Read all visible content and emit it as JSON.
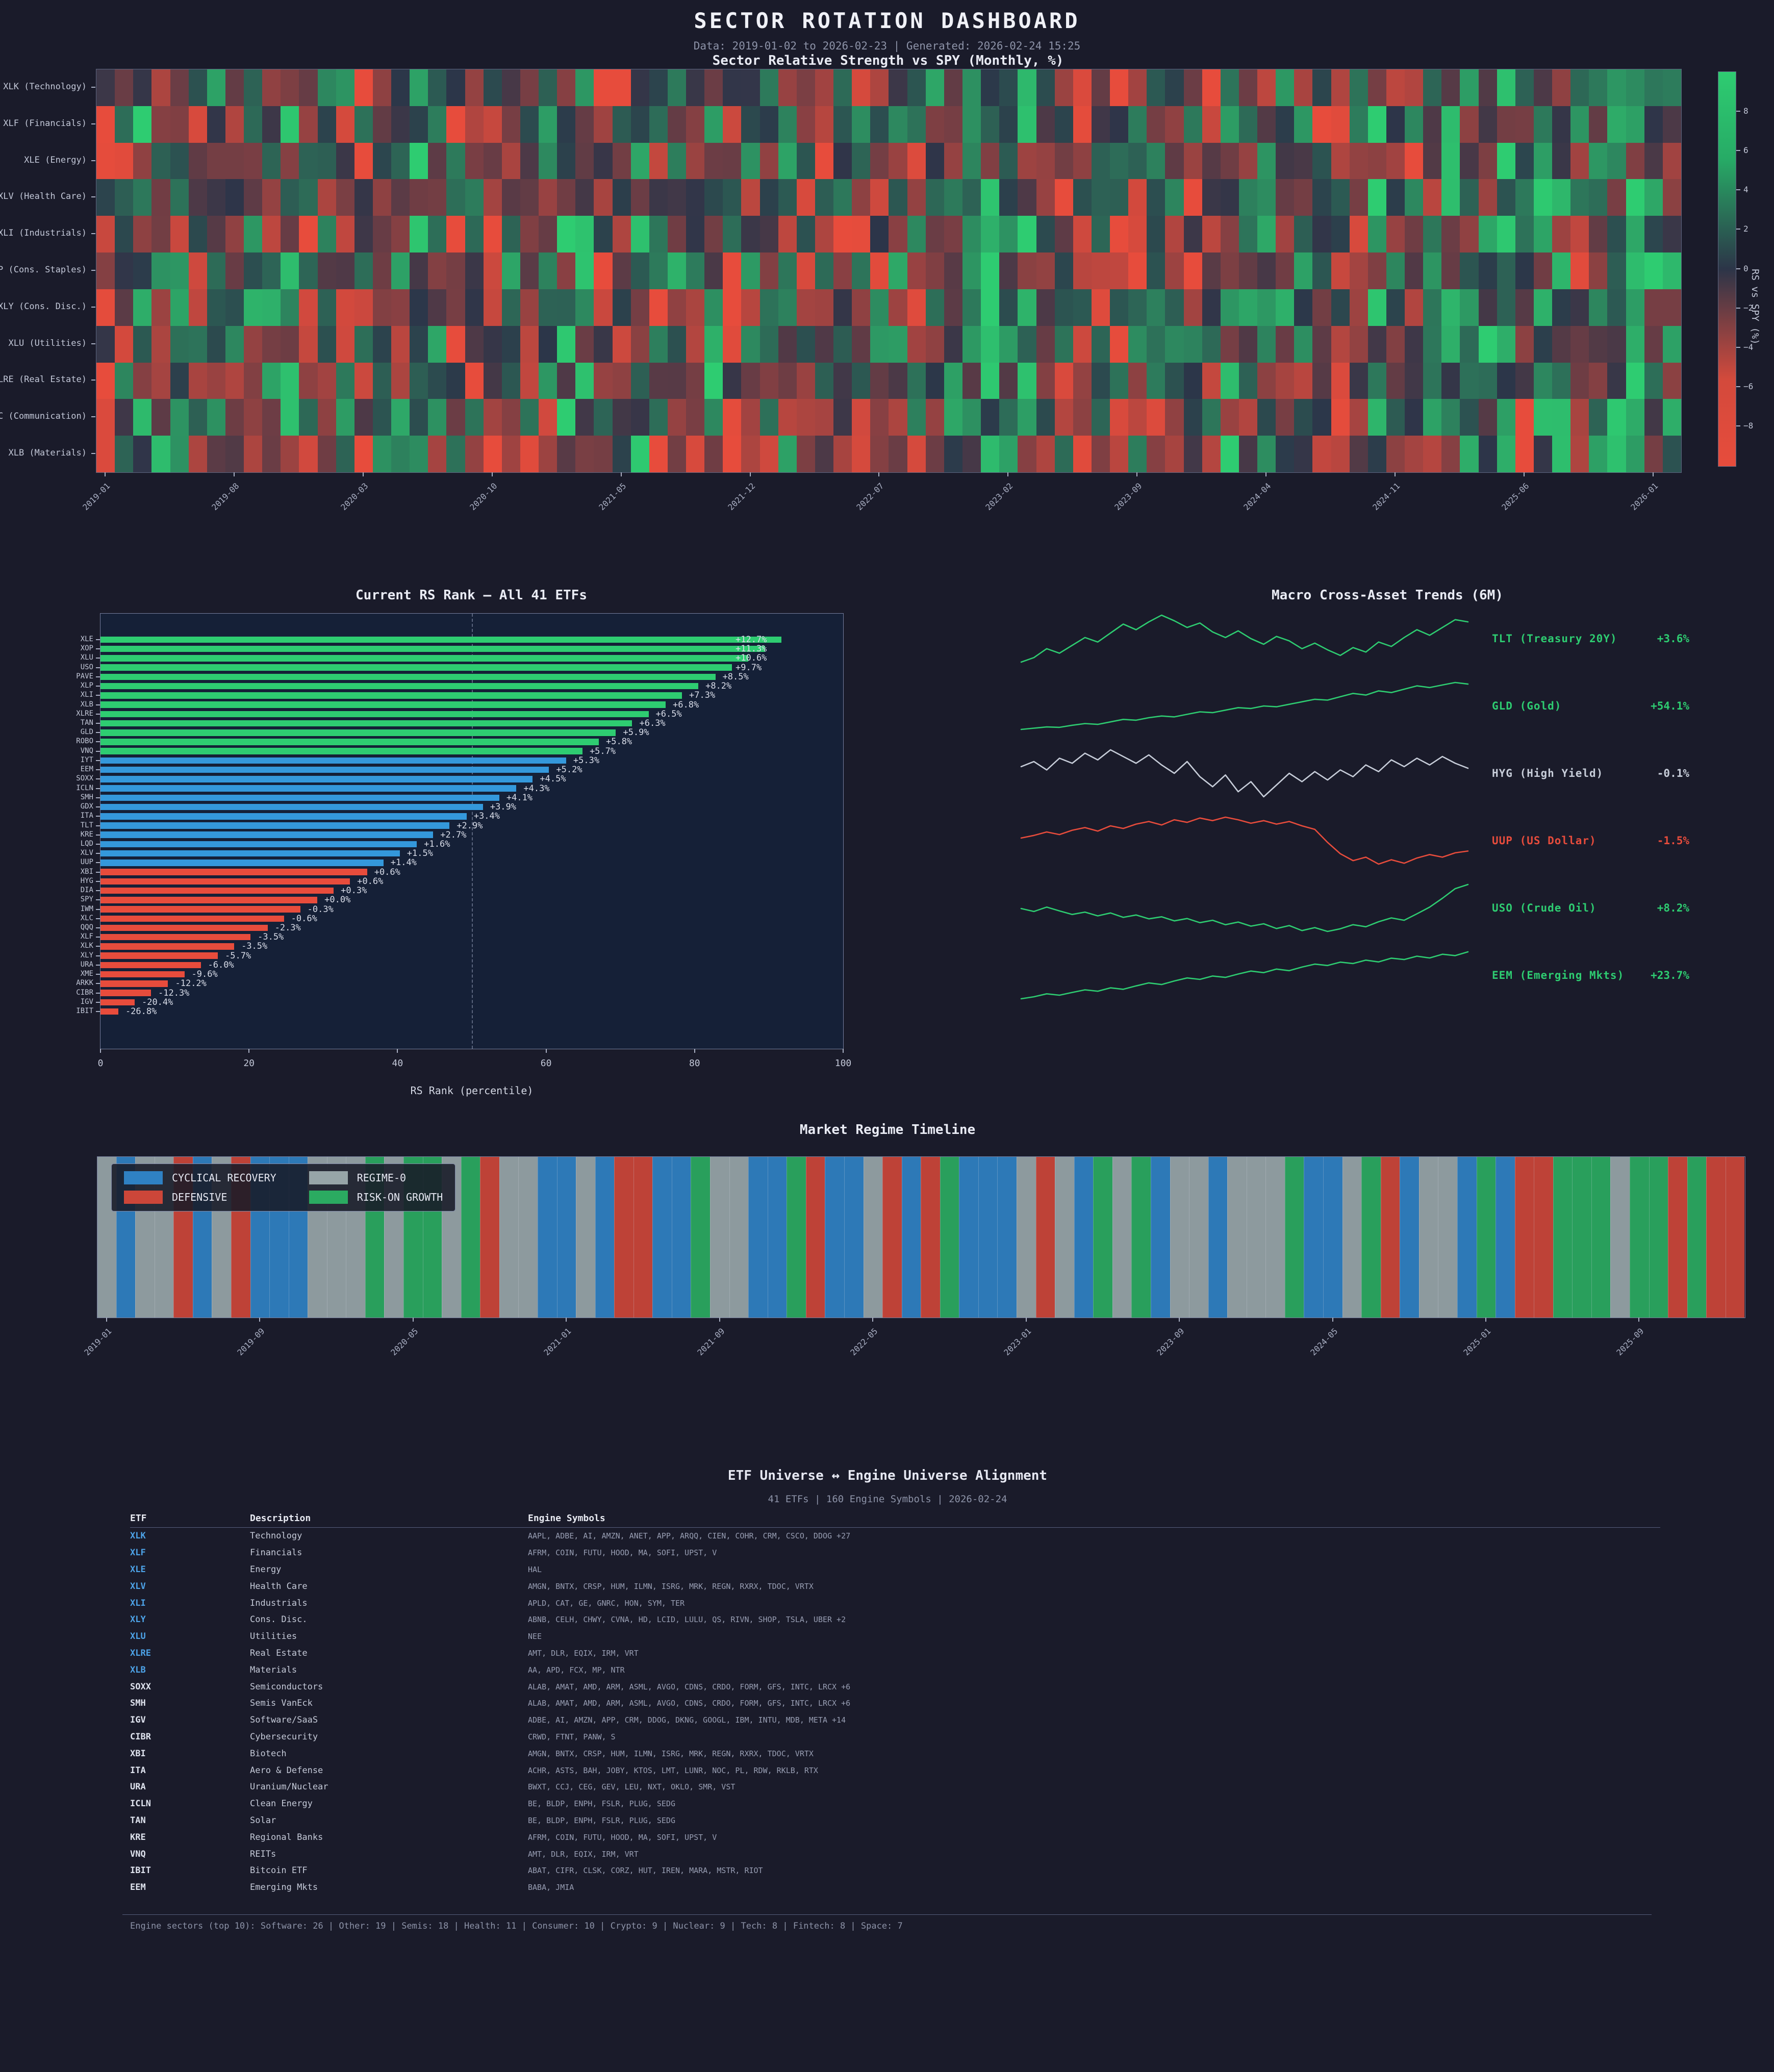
{
  "header": {
    "title": "SECTOR ROTATION DASHBOARD",
    "subtitle": "Data: 2019-01-02 to 2026-02-23 | Generated: 2026-02-24 15:25"
  },
  "colors": {
    "background": "#1a1b2a",
    "plot_background": "#152037",
    "green": "#2ecc71",
    "blue": "#3498db",
    "red": "#e74c3c",
    "neutral_cell": "#2c3548",
    "muted_text": "#8d93a8",
    "regime_blue": "#2f81c3",
    "regime_red": "#cc4639",
    "regime_gray": "#97a5a8",
    "regime_green": "#2bab61",
    "macro_gray_line": "#c7cdd9",
    "etf_blue": "#4da3e8"
  },
  "chart_data": [
    {
      "id": "sector_heatmap",
      "type": "heatmap",
      "title": "Sector Relative Strength vs SPY (Monthly, %)",
      "rows": [
        "XLK (Technology)",
        "XLF (Financials)",
        "XLE (Energy)",
        "XLV (Health Care)",
        "XLI (Industrials)",
        "XLP (Cons. Staples)",
        "XLY (Cons. Disc.)",
        "XLU (Utilities)",
        "XLRE (Real Estate)",
        "XLC (Communication)",
        "XLB (Materials)"
      ],
      "n_cols": 86,
      "x_tick_labels": [
        "2019-01",
        "2019-08",
        "2020-03",
        "2020-10",
        "2021-05",
        "2021-12",
        "2022-07",
        "2023-02",
        "2023-09",
        "2024-04",
        "2024-11",
        "2025-06",
        "2026-01"
      ],
      "x_tick_months": [
        0,
        7,
        14,
        21,
        28,
        35,
        42,
        49,
        56,
        63,
        70,
        77,
        84
      ],
      "vmin": -9.2,
      "vmax": 9.2,
      "colorbar_ticks": [
        "8",
        "6",
        "4",
        "2",
        "0",
        "−2",
        "−4",
        "−6",
        "−8"
      ],
      "colorbar_tick_values": [
        8,
        6,
        4,
        2,
        0,
        -2,
        -4,
        -6,
        -8
      ],
      "colorbar_label": "RS vs SPY (%)",
      "values_note": "individual monthly cell values are not legible in source; regenerated from seed",
      "seed": 1337
    },
    {
      "id": "rs_rank",
      "type": "bar",
      "title": "Current RS Rank — All 41 ETFs",
      "xlabel": "RS Rank (percentile)",
      "x_ticks": [
        0,
        20,
        40,
        60,
        80,
        100
      ],
      "xlim": [
        0,
        100
      ],
      "guide_line_x": 50,
      "tier_colors": {
        "top": "#2ecc71",
        "mid": "#3498db",
        "low": "#e74c3c"
      },
      "bars": [
        {
          "etf": "XLE",
          "pct": 91.7,
          "label": "+12.7%",
          "tier": "top"
        },
        {
          "etf": "XOP",
          "pct": 89.5,
          "label": "+11.3%",
          "tier": "top"
        },
        {
          "etf": "XLU",
          "pct": 87.2,
          "label": "+10.6%",
          "tier": "top"
        },
        {
          "etf": "USO",
          "pct": 85.0,
          "label": "+9.7%",
          "tier": "top"
        },
        {
          "etf": "PAVE",
          "pct": 82.8,
          "label": "+8.5%",
          "tier": "top"
        },
        {
          "etf": "XLP",
          "pct": 80.5,
          "label": "+8.2%",
          "tier": "top"
        },
        {
          "etf": "XLI",
          "pct": 78.3,
          "label": "+7.3%",
          "tier": "top"
        },
        {
          "etf": "XLB",
          "pct": 76.1,
          "label": "+6.8%",
          "tier": "top"
        },
        {
          "etf": "XLRE",
          "pct": 73.8,
          "label": "+6.5%",
          "tier": "top"
        },
        {
          "etf": "TAN",
          "pct": 71.6,
          "label": "+6.3%",
          "tier": "top"
        },
        {
          "etf": "GLD",
          "pct": 69.4,
          "label": "+5.9%",
          "tier": "top"
        },
        {
          "etf": "ROBO",
          "pct": 67.1,
          "label": "+5.8%",
          "tier": "top"
        },
        {
          "etf": "VNQ",
          "pct": 64.9,
          "label": "+5.7%",
          "tier": "top"
        },
        {
          "etf": "IYT",
          "pct": 62.7,
          "label": "+5.3%",
          "tier": "mid"
        },
        {
          "etf": "EEM",
          "pct": 60.4,
          "label": "+5.2%",
          "tier": "mid"
        },
        {
          "etf": "SOXX",
          "pct": 58.2,
          "label": "+4.5%",
          "tier": "mid"
        },
        {
          "etf": "ICLN",
          "pct": 56.0,
          "label": "+4.3%",
          "tier": "mid"
        },
        {
          "etf": "SMH",
          "pct": 53.7,
          "label": "+4.1%",
          "tier": "mid"
        },
        {
          "etf": "GDX",
          "pct": 51.5,
          "label": "+3.9%",
          "tier": "mid"
        },
        {
          "etf": "ITA",
          "pct": 49.3,
          "label": "+3.4%",
          "tier": "mid"
        },
        {
          "etf": "TLT",
          "pct": 47.0,
          "label": "+2.9%",
          "tier": "mid"
        },
        {
          "etf": "KRE",
          "pct": 44.8,
          "label": "+2.7%",
          "tier": "mid"
        },
        {
          "etf": "LQD",
          "pct": 42.6,
          "label": "+1.6%",
          "tier": "mid"
        },
        {
          "etf": "XLV",
          "pct": 40.3,
          "label": "+1.5%",
          "tier": "mid"
        },
        {
          "etf": "UUP",
          "pct": 38.1,
          "label": "+1.4%",
          "tier": "mid"
        },
        {
          "etf": "XBI",
          "pct": 35.9,
          "label": "+0.6%",
          "tier": "low"
        },
        {
          "etf": "HYG",
          "pct": 33.6,
          "label": "+0.6%",
          "tier": "low"
        },
        {
          "etf": "DIA",
          "pct": 31.4,
          "label": "+0.3%",
          "tier": "low"
        },
        {
          "etf": "SPY",
          "pct": 29.2,
          "label": "+0.0%",
          "tier": "low"
        },
        {
          "etf": "IWM",
          "pct": 26.9,
          "label": "-0.3%",
          "tier": "low"
        },
        {
          "etf": "XLC",
          "pct": 24.7,
          "label": "-0.6%",
          "tier": "low"
        },
        {
          "etf": "QQQ",
          "pct": 22.5,
          "label": "-2.3%",
          "tier": "low"
        },
        {
          "etf": "XLF",
          "pct": 20.2,
          "label": "-3.5%",
          "tier": "low"
        },
        {
          "etf": "XLK",
          "pct": 18.0,
          "label": "-3.5%",
          "tier": "low"
        },
        {
          "etf": "XLY",
          "pct": 15.8,
          "label": "-5.7%",
          "tier": "low"
        },
        {
          "etf": "URA",
          "pct": 13.5,
          "label": "-6.0%",
          "tier": "low"
        },
        {
          "etf": "XME",
          "pct": 11.3,
          "label": "-9.6%",
          "tier": "low"
        },
        {
          "etf": "ARKK",
          "pct": 9.1,
          "label": "-12.2%",
          "tier": "low"
        },
        {
          "etf": "CIBR",
          "pct": 6.8,
          "label": "-12.3%",
          "tier": "low"
        },
        {
          "etf": "IGV",
          "pct": 4.6,
          "label": "-20.4%",
          "tier": "low"
        },
        {
          "etf": "IBIT",
          "pct": 2.4,
          "label": "-26.8%",
          "tier": "low"
        }
      ]
    },
    {
      "id": "macro_trends",
      "type": "line",
      "title": "Macro Cross-Asset Trends (6M)",
      "series": [
        {
          "name": "TLT (Treasury 20Y)",
          "change": "+3.6%",
          "color": "#2ecc71",
          "points": [
            0,
            0.4,
            1.2,
            0.8,
            1.5,
            2.2,
            1.8,
            2.6,
            3.4,
            2.9,
            3.6,
            4.2,
            3.7,
            3.1,
            3.5,
            2.7,
            2.2,
            2.8,
            2.1,
            1.6,
            2.3,
            1.9,
            1.2,
            1.7,
            1.1,
            0.6,
            1.3,
            0.9,
            1.8,
            1.4,
            2.2,
            2.9,
            2.4,
            3.1,
            3.8,
            3.6
          ]
        },
        {
          "name": "GLD (Gold)",
          "change": "+54.1%",
          "color": "#2ecc71",
          "points": [
            0,
            1.5,
            3,
            2.5,
            5,
            7,
            6,
            9,
            12,
            11,
            14,
            16,
            15,
            18,
            21,
            20,
            23,
            26,
            25,
            28,
            27,
            30,
            33,
            36,
            35,
            39,
            43,
            41,
            46,
            44,
            48,
            52,
            50,
            53,
            56,
            54.1
          ]
        },
        {
          "name": "HYG (High Yield)",
          "change": "-0.1%",
          "color": "#c7cdd9",
          "points": [
            0,
            0.3,
            -0.2,
            0.5,
            0.2,
            0.8,
            0.4,
            1.0,
            0.6,
            0.2,
            0.7,
            0.1,
            -0.4,
            0.3,
            -0.6,
            -1.2,
            -0.5,
            -1.5,
            -0.9,
            -1.8,
            -1.1,
            -0.4,
            -0.9,
            -0.3,
            -0.8,
            -0.2,
            -0.6,
            0.1,
            -0.3,
            0.4,
            0,
            0.5,
            0.1,
            0.6,
            0.2,
            -0.1
          ]
        },
        {
          "name": "UUP (US Dollar)",
          "change": "-1.5%",
          "color": "#e74c3c",
          "points": [
            0,
            0.3,
            0.7,
            0.4,
            0.9,
            1.2,
            0.8,
            1.4,
            1.1,
            1.6,
            1.9,
            1.5,
            2.1,
            1.8,
            2.3,
            2.0,
            2.4,
            2.1,
            1.7,
            2.0,
            1.6,
            1.9,
            1.4,
            1.0,
            -0.5,
            -1.8,
            -2.6,
            -2.2,
            -3.0,
            -2.5,
            -2.9,
            -2.3,
            -1.9,
            -2.2,
            -1.7,
            -1.5
          ]
        },
        {
          "name": "USO (Crude Oil)",
          "change": "+8.2%",
          "color": "#2ecc71",
          "points": [
            0,
            -1,
            0.5,
            -0.8,
            -2,
            -1.2,
            -2.5,
            -1.5,
            -3,
            -2.2,
            -3.5,
            -2.8,
            -4.2,
            -3.4,
            -4.8,
            -4,
            -5.5,
            -4.6,
            -6,
            -5.2,
            -6.8,
            -5.8,
            -7.5,
            -6.5,
            -7.8,
            -6.9,
            -5.5,
            -6.2,
            -4.5,
            -3.2,
            -4,
            -1.8,
            0.5,
            3.5,
            6.8,
            8.2
          ]
        },
        {
          "name": "EEM (Emerging Mkts)",
          "change": "+23.7%",
          "color": "#2ecc71",
          "points": [
            0,
            1,
            2.5,
            1.8,
            3.2,
            4.5,
            3.8,
            5.5,
            4.8,
            6.5,
            8,
            7.2,
            9,
            10.5,
            9.8,
            11.5,
            10.8,
            12.5,
            14,
            13.2,
            15,
            14.2,
            16,
            17.5,
            16.8,
            18.5,
            17.8,
            19.5,
            18.6,
            20.5,
            19.8,
            21.5,
            20.6,
            22.5,
            21.8,
            23.7
          ]
        }
      ]
    },
    {
      "id": "regime_timeline",
      "type": "heatmap",
      "title": "Market Regime Timeline",
      "legend": [
        {
          "code": "B",
          "label": "CYCLICAL RECOVERY",
          "color": "#2f81c3"
        },
        {
          "code": "G",
          "label": "REGIME-0",
          "color": "#97a5a8"
        },
        {
          "code": "R",
          "label": "DEFENSIVE",
          "color": "#cc4639"
        },
        {
          "code": "N",
          "label": "RISK-ON GROWTH",
          "color": "#2bab61"
        }
      ],
      "x_tick_labels": [
        "2019-01",
        "2019-09",
        "2020-05",
        "2021-01",
        "2021-09",
        "2022-05",
        "2023-01",
        "2023-09",
        "2024-05",
        "2025-01",
        "2025-09"
      ],
      "x_tick_months": [
        0,
        8,
        16,
        24,
        32,
        40,
        48,
        56,
        64,
        72,
        80
      ],
      "months": [
        "G",
        "B",
        "G",
        "G",
        "R",
        "B",
        "G",
        "R",
        "B",
        "B",
        "B",
        "G",
        "G",
        "G",
        "N",
        "G",
        "N",
        "N",
        "G",
        "N",
        "R",
        "G",
        "G",
        "B",
        "B",
        "G",
        "B",
        "R",
        "R",
        "B",
        "B",
        "N",
        "G",
        "G",
        "B",
        "B",
        "N",
        "R",
        "B",
        "B",
        "G",
        "R",
        "B",
        "R",
        "N",
        "B",
        "B",
        "B",
        "G",
        "R",
        "G",
        "B",
        "N",
        "G",
        "N",
        "B",
        "G",
        "G",
        "B",
        "G",
        "G",
        "G",
        "N",
        "B",
        "B",
        "G",
        "N",
        "R",
        "B",
        "G",
        "G",
        "B",
        "N",
        "B",
        "R",
        "R",
        "N",
        "N",
        "N",
        "G",
        "N",
        "N",
        "R",
        "N",
        "R",
        "R"
      ]
    },
    {
      "id": "etf_universe_table",
      "type": "table",
      "title": "ETF Universe ↔ Engine Universe Alignment",
      "subtitle": "41 ETFs | 160 Engine Symbols | 2026-02-24",
      "columns": [
        "ETF",
        "Description",
        "Engine Symbols"
      ],
      "rows": [
        {
          "etf": "XLK",
          "desc": "Technology",
          "symbols": "AAPL, ADBE, AI, AMZN, ANET, APP, ARQQ, CIEN, COHR, CRM, CSCO, DDOG +27",
          "blue": true
        },
        {
          "etf": "XLF",
          "desc": "Financials",
          "symbols": "AFRM, COIN, FUTU, HOOD, MA, SOFI, UPST, V",
          "blue": true
        },
        {
          "etf": "XLE",
          "desc": "Energy",
          "symbols": "HAL",
          "blue": true
        },
        {
          "etf": "XLV",
          "desc": "Health Care",
          "symbols": "AMGN, BNTX, CRSP, HUM, ILMN, ISRG, MRK, REGN, RXRX, TDOC, VRTX",
          "blue": true
        },
        {
          "etf": "XLI",
          "desc": "Industrials",
          "symbols": "APLD, CAT, GE, GNRC, HON, SYM, TER",
          "blue": true
        },
        {
          "etf": "XLY",
          "desc": "Cons. Disc.",
          "symbols": "ABNB, CELH, CHWY, CVNA, HD, LCID, LULU, QS, RIVN, SHOP, TSLA, UBER +2",
          "blue": true
        },
        {
          "etf": "XLU",
          "desc": "Utilities",
          "symbols": "NEE",
          "blue": true
        },
        {
          "etf": "XLRE",
          "desc": "Real Estate",
          "symbols": "AMT, DLR, EQIX, IRM, VRT",
          "blue": true
        },
        {
          "etf": "XLB",
          "desc": "Materials",
          "symbols": "AA, APD, FCX, MP, NTR",
          "blue": true
        },
        {
          "etf": "SOXX",
          "desc": "Semiconductors",
          "symbols": "ALAB, AMAT, AMD, ARM, ASML, AVGO, CDNS, CRDO, FORM, GFS, INTC, LRCX +6",
          "blue": false
        },
        {
          "etf": "SMH",
          "desc": "Semis VanEck",
          "symbols": "ALAB, AMAT, AMD, ARM, ASML, AVGO, CDNS, CRDO, FORM, GFS, INTC, LRCX +6",
          "blue": false
        },
        {
          "etf": "IGV",
          "desc": "Software/SaaS",
          "symbols": "ADBE, AI, AMZN, APP, CRM, DDOG, DKNG, GOOGL, IBM, INTU, MDB, META +14",
          "blue": false
        },
        {
          "etf": "CIBR",
          "desc": "Cybersecurity",
          "symbols": "CRWD, FTNT, PANW, S",
          "blue": false
        },
        {
          "etf": "XBI",
          "desc": "Biotech",
          "symbols": "AMGN, BNTX, CRSP, HUM, ILMN, ISRG, MRK, REGN, RXRX, TDOC, VRTX",
          "blue": false
        },
        {
          "etf": "ITA",
          "desc": "Aero & Defense",
          "symbols": "ACHR, ASTS, BAH, JOBY, KTOS, LMT, LUNR, NOC, PL, RDW, RKLB, RTX",
          "blue": false
        },
        {
          "etf": "URA",
          "desc": "Uranium/Nuclear",
          "symbols": "BWXT, CCJ, CEG, GEV, LEU, NXT, OKLO, SMR, VST",
          "blue": false
        },
        {
          "etf": "ICLN",
          "desc": "Clean Energy",
          "symbols": "BE, BLDP, ENPH, FSLR, PLUG, SEDG",
          "blue": false
        },
        {
          "etf": "TAN",
          "desc": "Solar",
          "symbols": "BE, BLDP, ENPH, FSLR, PLUG, SEDG",
          "blue": false
        },
        {
          "etf": "KRE",
          "desc": "Regional Banks",
          "symbols": "AFRM, COIN, FUTU, HOOD, MA, SOFI, UPST, V",
          "blue": false
        },
        {
          "etf": "VNQ",
          "desc": "REITs",
          "symbols": "AMT, DLR, EQIX, IRM, VRT",
          "blue": false
        },
        {
          "etf": "IBIT",
          "desc": "Bitcoin ETF",
          "symbols": "ABAT, CIFR, CLSK, CORZ, HUT, IREN, MARA, MSTR, RIOT",
          "blue": false
        },
        {
          "etf": "EEM",
          "desc": "Emerging Mkts",
          "symbols": "BABA, JMIA",
          "blue": false
        }
      ]
    }
  ],
  "footer": {
    "text": "Engine sectors (top 10): Software: 26 | Other: 19 | Semis: 18 | Health: 11 | Consumer: 10 | Crypto: 9 | Nuclear: 9 | Tech: 8 | Fintech: 8 | Space: 7"
  }
}
